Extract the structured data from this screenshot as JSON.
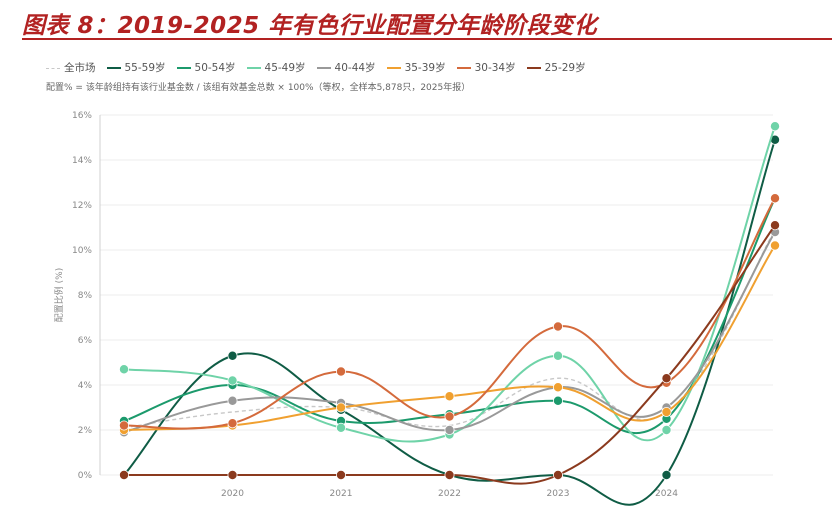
{
  "figure": {
    "title": "图表 8：2019-2025 年有色行业配置分年龄阶段变化",
    "note": "配置% = 该年龄组持有该行业基金数 / 该组有效基金总数 × 100%（等权，全样本5,878只，2025年报）"
  },
  "chart_data": {
    "type": "line",
    "categories": [
      "2019",
      "2020",
      "2021",
      "2022",
      "2023",
      "2024",
      "2025"
    ],
    "x_tick_labels": [
      "2020",
      "2021",
      "2022",
      "2023",
      "2024"
    ],
    "ylabel": "配置比例 (%)",
    "ylim": [
      0,
      16
    ],
    "y_ticks": [
      0,
      2,
      4,
      6,
      8,
      10,
      12,
      14,
      16
    ],
    "y_tick_suffix": "%",
    "grid": true,
    "legend_position": "top-left",
    "series": [
      {
        "name": "全市场",
        "color": "#c8c8c8",
        "dashed": true,
        "markers": false,
        "values": [
          2.1,
          2.8,
          3.0,
          2.2,
          4.3,
          2.8,
          10.9
        ]
      },
      {
        "name": "55-59岁",
        "color": "#0f5c45",
        "dashed": false,
        "markers": true,
        "values": [
          0,
          5.3,
          2.9,
          0,
          0,
          0,
          14.9
        ]
      },
      {
        "name": "50-54岁",
        "color": "#1c9a6c",
        "dashed": false,
        "markers": true,
        "values": [
          2.4,
          4.0,
          2.4,
          2.7,
          3.3,
          2.5,
          12.3
        ]
      },
      {
        "name": "45-49岁",
        "color": "#6fd3a8",
        "dashed": false,
        "markers": true,
        "values": [
          4.7,
          4.2,
          2.1,
          1.8,
          5.3,
          2.0,
          15.5
        ]
      },
      {
        "name": "40-44岁",
        "color": "#999999",
        "dashed": false,
        "markers": true,
        "values": [
          1.9,
          3.3,
          3.2,
          2.0,
          3.9,
          3.0,
          10.8
        ]
      },
      {
        "name": "35-39岁",
        "color": "#f0a030",
        "dashed": false,
        "markers": true,
        "values": [
          2.0,
          2.2,
          3.0,
          3.5,
          3.9,
          2.8,
          10.2
        ]
      },
      {
        "name": "30-34岁",
        "color": "#d46a3c",
        "dashed": false,
        "markers": true,
        "values": [
          2.2,
          2.3,
          4.6,
          2.6,
          6.6,
          4.1,
          12.3
        ]
      },
      {
        "name": "25-29岁",
        "color": "#8b3a1e",
        "dashed": false,
        "markers": true,
        "values": [
          0,
          0,
          0,
          0,
          0,
          4.3,
          11.1
        ]
      }
    ]
  }
}
